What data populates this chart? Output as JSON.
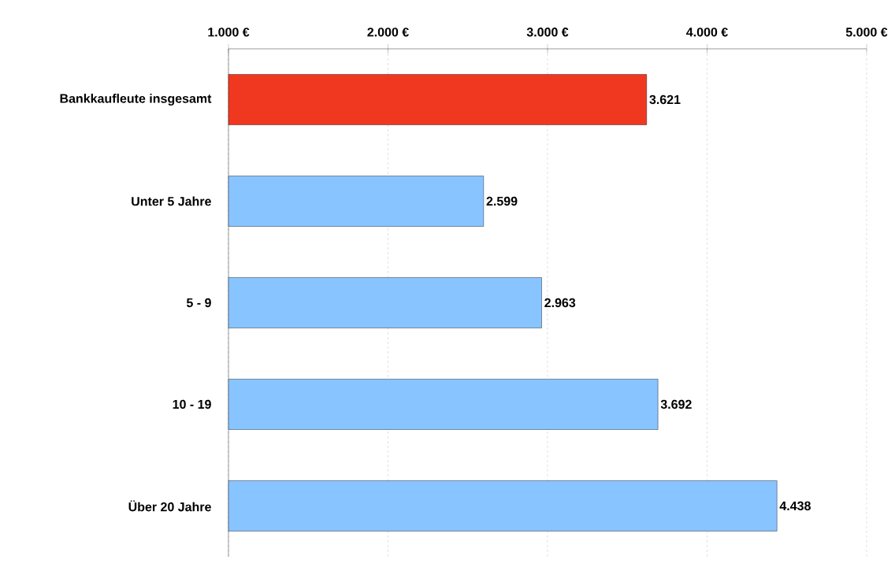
{
  "chart_data": {
    "type": "bar",
    "orientation": "horizontal",
    "categories": [
      "Bankkaufleute insgesamt",
      "Unter 5 Jahre",
      "5 - 9",
      "10 - 19",
      "Über 20 Jahre"
    ],
    "values": [
      3621,
      2599,
      2963,
      3692,
      4438
    ],
    "colors": [
      "#f03820",
      "#88c4ff",
      "#88c4ff",
      "#88c4ff",
      "#88c4ff"
    ],
    "value_labels": [
      "3.621",
      "2.599",
      "2.963",
      "3.692",
      "4.438"
    ],
    "xlim": [
      1000,
      5000
    ],
    "xticks": [
      {
        "value": 1000,
        "label": "1.000 €"
      },
      {
        "value": 2000,
        "label": "2.000 €"
      },
      {
        "value": 3000,
        "label": "3.000 €"
      },
      {
        "value": 4000,
        "label": "4.000 €"
      },
      {
        "value": 5000,
        "label": "5.000 €"
      }
    ],
    "grid": "x"
  }
}
